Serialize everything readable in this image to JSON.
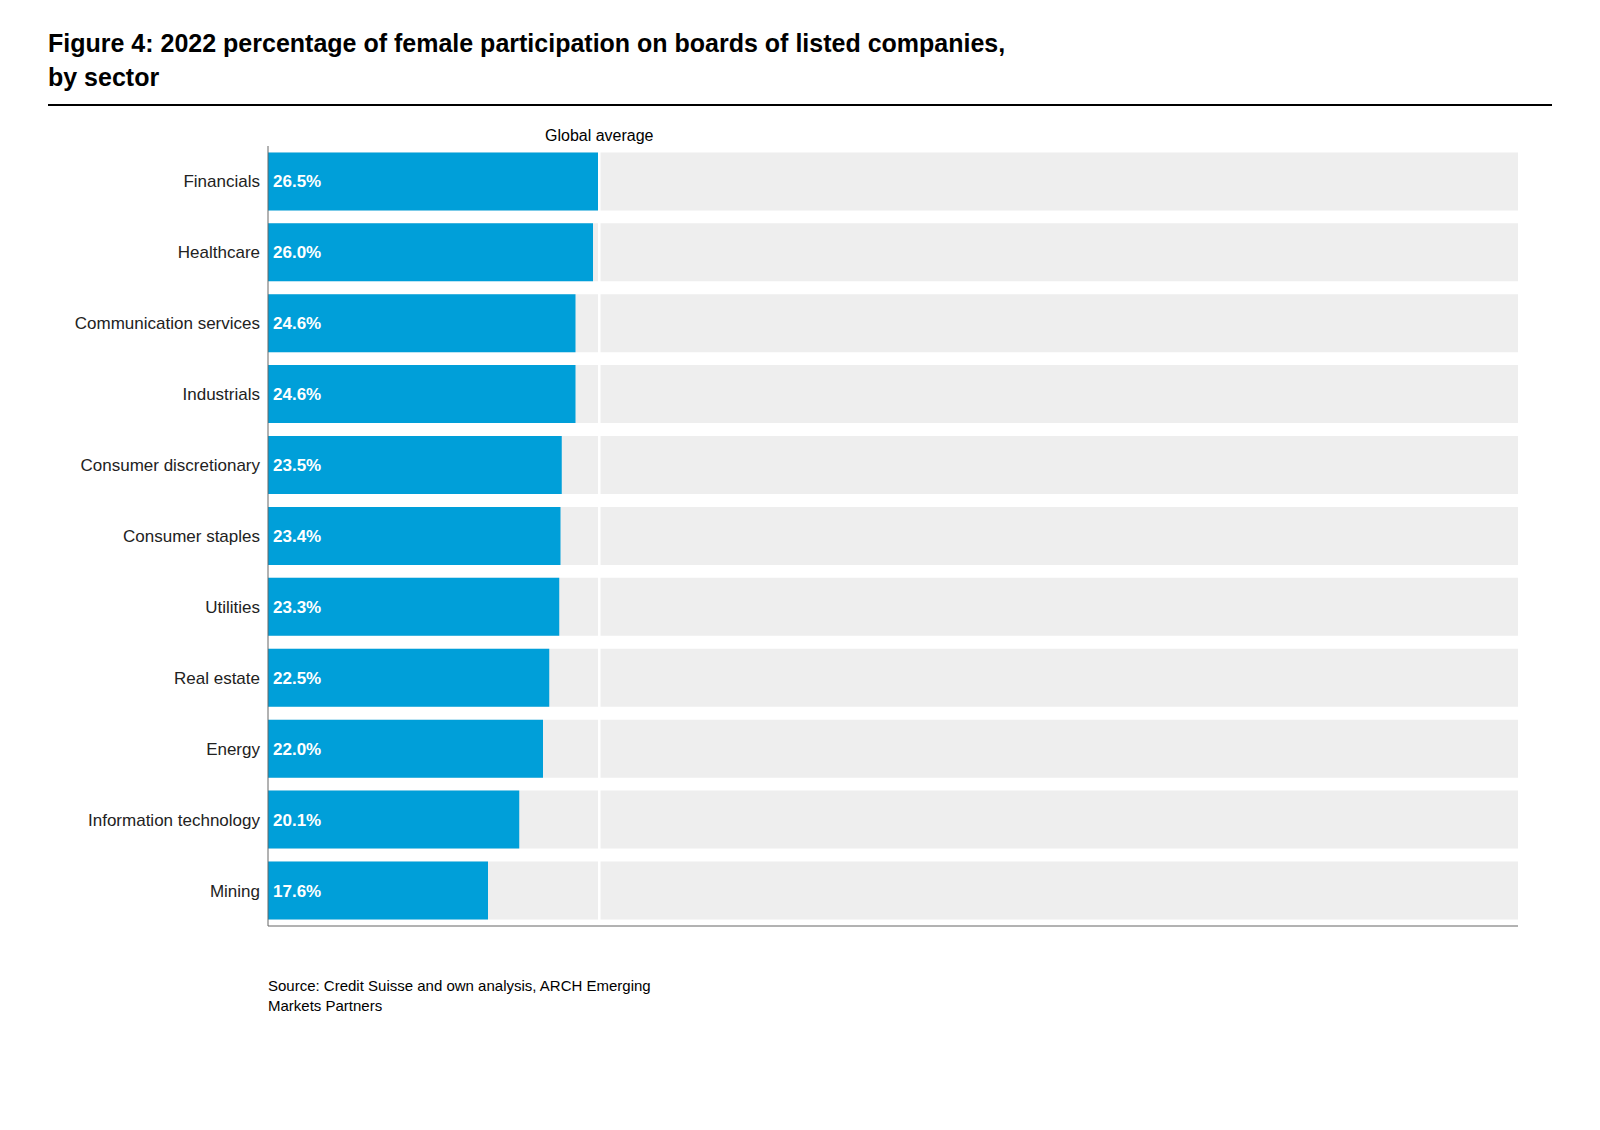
{
  "chart_data": {
    "type": "bar",
    "orientation": "horizontal",
    "title": "Figure 4: 2022 percentage of female participation on boards of listed companies,\nby sector",
    "categories": [
      "Financials",
      "Healthcare",
      "Communication services",
      "Industrials",
      "Consumer discretionary",
      "Consumer staples",
      "Utilities",
      "Real estate",
      "Energy",
      "Information technology",
      "Mining"
    ],
    "values": [
      26.5,
      26.0,
      24.6,
      24.6,
      23.5,
      23.4,
      23.3,
      22.5,
      22.0,
      20.1,
      17.6
    ],
    "value_labels": [
      "26.5%",
      "26.0%",
      "24.6%",
      "24.6%",
      "23.5%",
      "23.4%",
      "23.3%",
      "22.5%",
      "22.0%",
      "20.1%",
      "17.6%"
    ],
    "data_labels": true,
    "color": "#009FD9",
    "xlim": [
      0,
      100
    ],
    "tick_labels": "y",
    "grid": false,
    "annotations": [
      {
        "text": "Global average",
        "x": 26.5
      },
      {
        "text": "Source: Credit Suisse and own analysis, ARCH Emerging\nMarkets Partners"
      }
    ]
  }
}
